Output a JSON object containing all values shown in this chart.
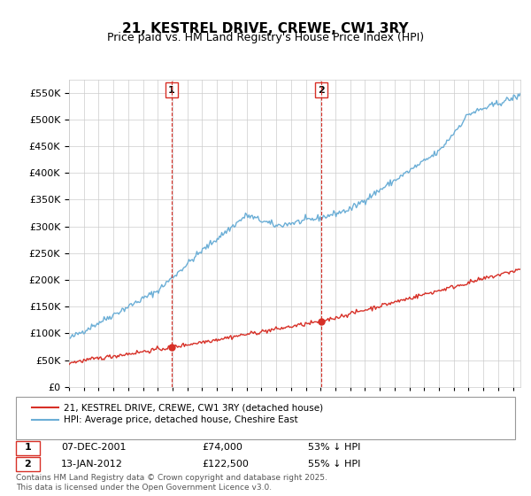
{
  "title": "21, KESTREL DRIVE, CREWE, CW1 3RY",
  "subtitle": "Price paid vs. HM Land Registry's House Price Index (HPI)",
  "ytick_values": [
    0,
    50000,
    100000,
    150000,
    200000,
    250000,
    300000,
    350000,
    400000,
    450000,
    500000,
    550000
  ],
  "ylim": [
    0,
    575000
  ],
  "xlim_start": 1995.0,
  "xlim_end": 2025.5,
  "sale1_x": 2001.93,
  "sale1_y": 74000,
  "sale1_label": "1",
  "sale2_x": 2012.04,
  "sale2_y": 122500,
  "sale2_label": "2",
  "hpi_color": "#6baed6",
  "price_color": "#d73027",
  "vline_color": "#d73027",
  "legend_label_price": "21, KESTREL DRIVE, CREWE, CW1 3RY (detached house)",
  "legend_label_hpi": "HPI: Average price, detached house, Cheshire East",
  "table_rows": [
    {
      "num": "1",
      "date": "07-DEC-2001",
      "price": "£74,000",
      "hpi": "53% ↓ HPI"
    },
    {
      "num": "2",
      "date": "13-JAN-2012",
      "price": "£122,500",
      "hpi": "55% ↓ HPI"
    }
  ],
  "footnote": "Contains HM Land Registry data © Crown copyright and database right 2025.\nThis data is licensed under the Open Government Licence v3.0.",
  "background_color": "#ffffff",
  "grid_color": "#cccccc"
}
